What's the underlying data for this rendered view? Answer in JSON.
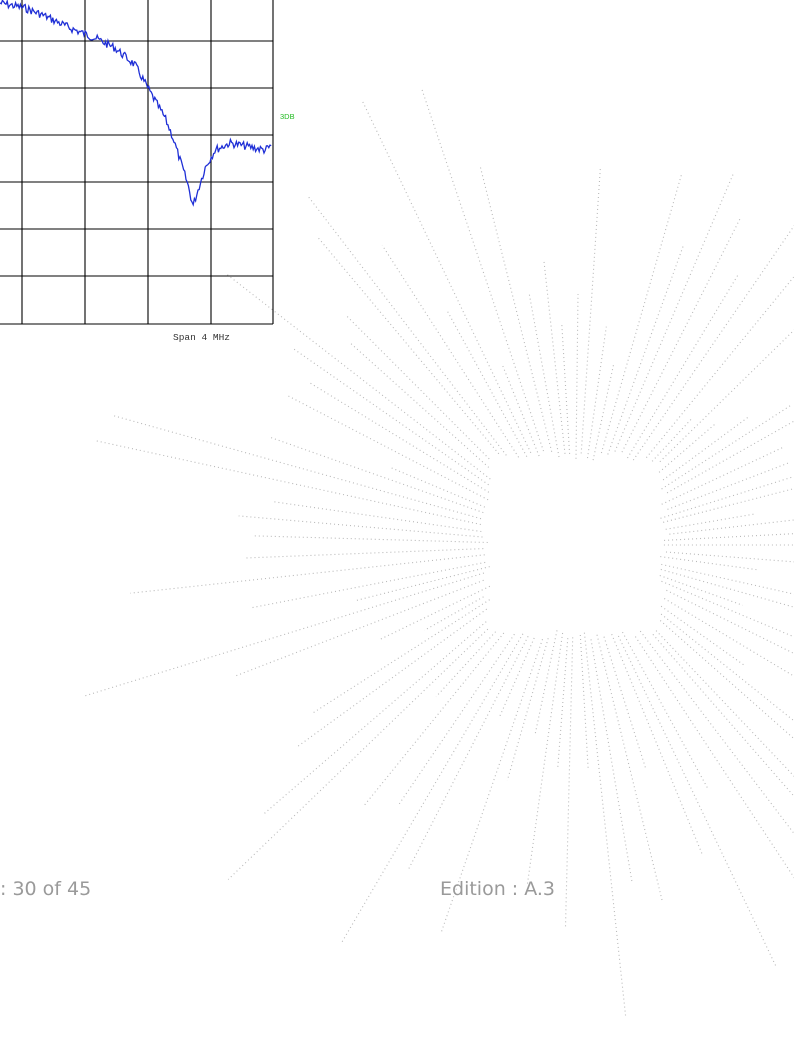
{
  "spectrum": {
    "span_label": "Span 4 MHz",
    "marker_tag": "3DB",
    "trace_color": "#1f2fd6",
    "grid_color": "#000000"
  },
  "footer": {
    "page_info": ": 30 of 45",
    "edition": "Edition : A.3"
  },
  "decoration": {
    "watermark": "dotted radial burst",
    "dot_color": "#b8b8b8"
  }
}
